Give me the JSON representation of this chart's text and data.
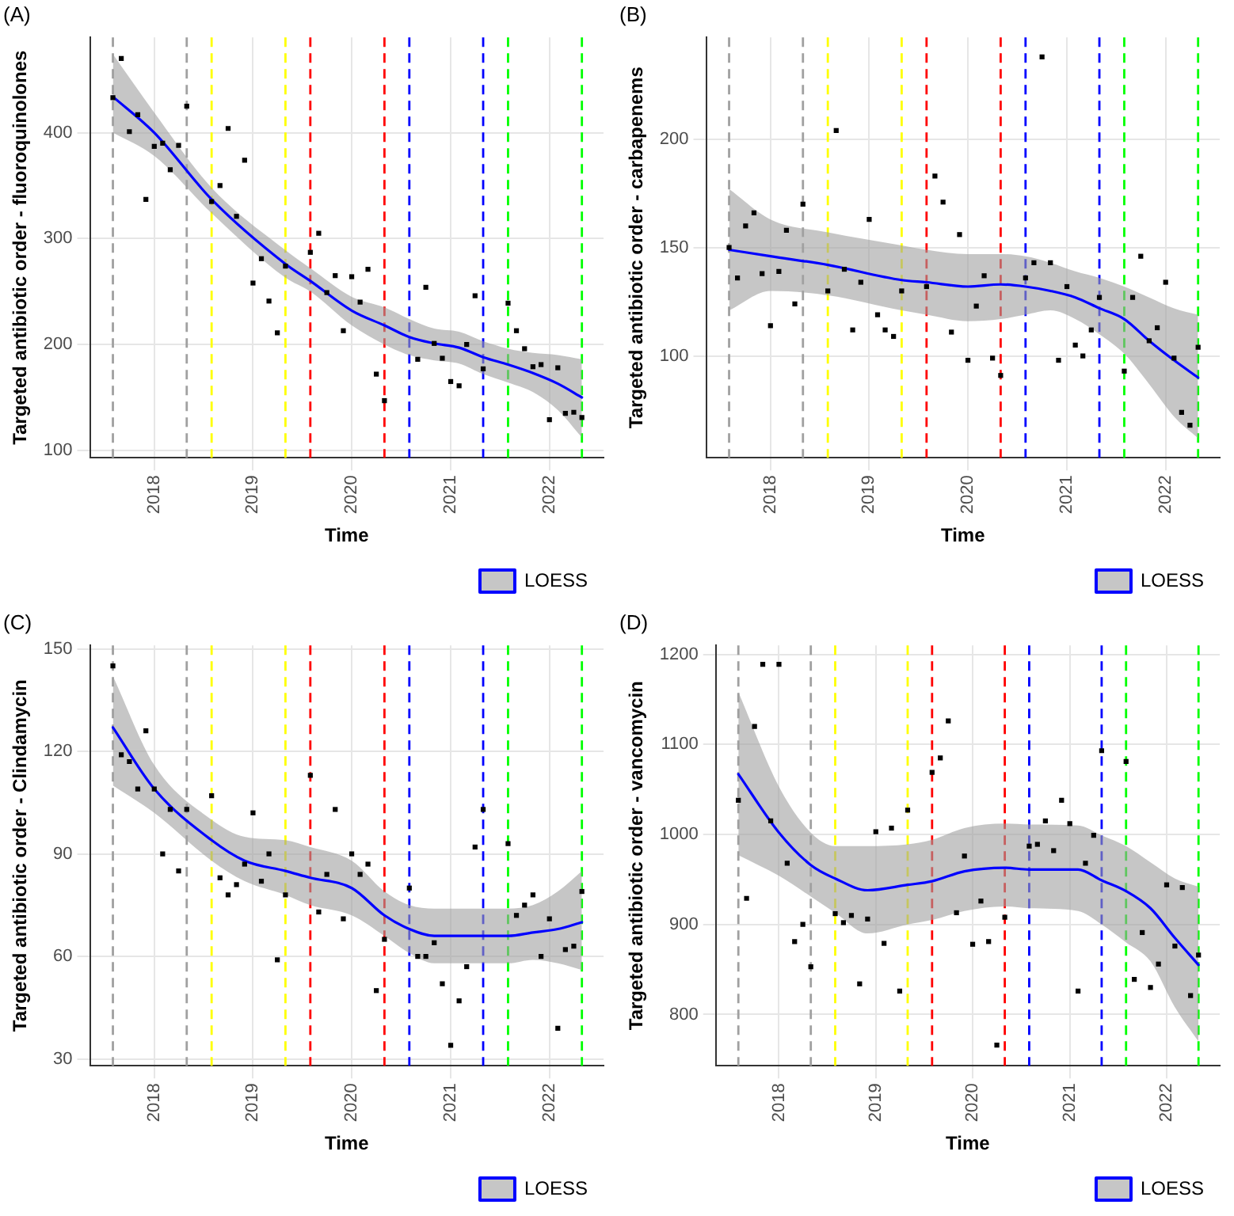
{
  "chart_data": [
    {
      "type": "scatter",
      "title": "(A)",
      "xlabel": "Time",
      "ylabel": "Targeted antibiotic order - fluoroquinolones",
      "xlim": [
        "2017-05-08",
        "2022-07-20"
      ],
      "xticks": [
        "2018",
        "2019",
        "2020",
        "2021",
        "2022"
      ],
      "ylim": [
        93,
        490
      ],
      "yticks": [
        100,
        200,
        300,
        400
      ],
      "grid": true,
      "legend": "bottom right",
      "x": [
        "2017-08",
        "2017-09",
        "2017-10",
        "2017-11",
        "2017-12",
        "2018-01",
        "2018-02",
        "2018-03",
        "2018-04",
        "2018-05",
        "2018-08",
        "2018-09",
        "2018-10",
        "2018-11",
        "2018-12",
        "2019-01",
        "2019-02",
        "2019-03",
        "2019-04",
        "2019-05",
        "2019-08",
        "2019-09",
        "2019-10",
        "2019-11",
        "2019-12",
        "2020-01",
        "2020-02",
        "2020-03",
        "2020-04",
        "2020-05",
        "2020-08",
        "2020-09",
        "2020-10",
        "2020-11",
        "2020-12",
        "2021-01",
        "2021-02",
        "2021-03",
        "2021-04",
        "2021-05",
        "2021-08",
        "2021-09",
        "2021-10",
        "2021-11",
        "2021-12",
        "2022-01",
        "2022-02",
        "2022-03",
        "2022-04",
        "2022-05"
      ],
      "series": [
        {
          "type": "scatter",
          "marker": "square",
          "color": "#000000",
          "values": [
            433,
            470,
            401,
            417,
            337,
            387,
            390,
            365,
            388,
            425,
            335,
            350,
            404,
            321,
            374,
            258,
            281,
            241,
            211,
            274,
            287,
            305,
            249,
            265,
            213,
            264,
            240,
            271,
            172,
            147,
            null,
            186,
            254,
            201,
            187,
            165,
            161,
            200,
            246,
            177,
            239,
            213,
            196,
            179,
            181,
            129,
            178,
            135,
            136,
            131
          ]
        },
        {
          "name": "LOESS",
          "type": "line",
          "color": "#0000ff",
          "x": [
            "2017-08",
            "2018-01",
            "2018-08",
            "2019-05",
            "2019-08",
            "2020-01",
            "2020-05",
            "2020-08",
            "2020-11",
            "2021-02",
            "2021-05",
            "2021-08",
            "2021-11",
            "2022-02",
            "2022-05"
          ],
          "values": [
            434,
            400,
            337,
            276,
            260,
            232,
            218,
            207,
            201,
            197,
            188,
            181,
            173,
            163,
            150
          ],
          "lower": [
            400,
            378,
            324,
            263,
            250,
            218,
            200,
            190,
            185,
            182,
            172,
            164,
            155,
            138,
            112
          ],
          "upper": [
            474,
            419,
            348,
            289,
            272,
            245,
            235,
            224,
            215,
            212,
            203,
            196,
            192,
            190,
            186
          ]
        }
      ],
      "ref_lines": [
        {
          "axis": "x",
          "value": "2017-08",
          "color": "#a0a0a0",
          "line_style": "dashed"
        },
        {
          "axis": "x",
          "value": "2018-05",
          "color": "#a0a0a0",
          "line_style": "dashed"
        },
        {
          "axis": "x",
          "value": "2018-08",
          "color": "#ffff00",
          "line_style": "dashed"
        },
        {
          "axis": "x",
          "value": "2019-05",
          "color": "#ffff00",
          "line_style": "dashed"
        },
        {
          "axis": "x",
          "value": "2019-08",
          "color": "#ff0000",
          "line_style": "dashed"
        },
        {
          "axis": "x",
          "value": "2020-05",
          "color": "#ff0000",
          "line_style": "dashed"
        },
        {
          "axis": "x",
          "value": "2020-08",
          "color": "#0000ff",
          "line_style": "dashed"
        },
        {
          "axis": "x",
          "value": "2021-05",
          "color": "#0000ff",
          "line_style": "dashed"
        },
        {
          "axis": "x",
          "value": "2021-08",
          "color": "#00ff00",
          "line_style": "dashed"
        },
        {
          "axis": "x",
          "value": "2022-05",
          "color": "#00ff00",
          "line_style": "dashed"
        }
      ]
    },
    {
      "type": "scatter",
      "title": "(B)",
      "xlabel": "Time",
      "ylabel": "Targeted antibiotic order - carbapenems",
      "xlim": [
        "2017-05-08",
        "2022-07-20"
      ],
      "xticks": [
        "2018",
        "2019",
        "2020",
        "2021",
        "2022"
      ],
      "ylim": [
        53,
        247
      ],
      "yticks": [
        100,
        150,
        200
      ],
      "grid": true,
      "legend": "bottom right",
      "x": [
        "2017-08",
        "2017-09",
        "2017-10",
        "2017-11",
        "2017-12",
        "2018-01",
        "2018-02",
        "2018-03",
        "2018-04",
        "2018-05",
        "2018-08",
        "2018-09",
        "2018-10",
        "2018-11",
        "2018-12",
        "2019-01",
        "2019-02",
        "2019-03",
        "2019-04",
        "2019-05",
        "2019-08",
        "2019-09",
        "2019-10",
        "2019-11",
        "2019-12",
        "2020-01",
        "2020-02",
        "2020-03",
        "2020-04",
        "2020-05",
        "2020-08",
        "2020-09",
        "2020-10",
        "2020-11",
        "2020-12",
        "2021-01",
        "2021-02",
        "2021-03",
        "2021-04",
        "2021-05",
        "2021-08",
        "2021-09",
        "2021-10",
        "2021-11",
        "2021-12",
        "2022-01",
        "2022-02",
        "2022-03",
        "2022-04",
        "2022-05"
      ],
      "series": [
        {
          "type": "scatter",
          "marker": "square",
          "color": "#000000",
          "values": [
            150,
            136,
            160,
            166,
            138,
            114,
            139,
            158,
            124,
            170,
            130,
            204,
            140,
            112,
            134,
            163,
            119,
            112,
            109,
            130,
            132,
            183,
            171,
            111,
            156,
            98,
            123,
            137,
            99,
            91,
            136,
            143,
            238,
            143,
            98,
            132,
            105,
            100,
            112,
            127,
            93,
            127,
            146,
            107,
            113,
            134,
            99,
            74,
            68,
            104
          ]
        },
        {
          "name": "LOESS",
          "type": "line",
          "color": "#0000ff",
          "x": [
            "2017-08",
            "2018-01",
            "2018-08",
            "2019-05",
            "2019-08",
            "2020-01",
            "2020-05",
            "2020-08",
            "2020-11",
            "2021-02",
            "2021-05",
            "2021-08",
            "2021-11",
            "2022-02",
            "2022-05"
          ],
          "values": [
            149,
            146,
            142,
            135,
            134,
            132,
            133,
            132,
            130,
            127,
            122,
            117,
            107,
            98,
            90
          ],
          "lower": [
            121,
            130,
            128,
            121,
            119,
            116,
            117,
            119,
            121,
            117,
            110,
            101,
            87,
            72,
            62
          ],
          "upper": [
            177,
            163,
            157,
            151,
            149,
            147,
            147,
            146,
            143,
            139,
            136,
            132,
            127,
            122,
            119
          ]
        }
      ],
      "ref_lines": [
        {
          "axis": "x",
          "value": "2017-08",
          "color": "#a0a0a0",
          "line_style": "dashed"
        },
        {
          "axis": "x",
          "value": "2018-05",
          "color": "#a0a0a0",
          "line_style": "dashed"
        },
        {
          "axis": "x",
          "value": "2018-08",
          "color": "#ffff00",
          "line_style": "dashed"
        },
        {
          "axis": "x",
          "value": "2019-05",
          "color": "#ffff00",
          "line_style": "dashed"
        },
        {
          "axis": "x",
          "value": "2019-08",
          "color": "#ff0000",
          "line_style": "dashed"
        },
        {
          "axis": "x",
          "value": "2020-05",
          "color": "#ff0000",
          "line_style": "dashed"
        },
        {
          "axis": "x",
          "value": "2020-08",
          "color": "#0000ff",
          "line_style": "dashed"
        },
        {
          "axis": "x",
          "value": "2021-05",
          "color": "#0000ff",
          "line_style": "dashed"
        },
        {
          "axis": "x",
          "value": "2021-08",
          "color": "#00ff00",
          "line_style": "dashed"
        },
        {
          "axis": "x",
          "value": "2022-05",
          "color": "#00ff00",
          "line_style": "dashed"
        }
      ]
    },
    {
      "type": "scatter",
      "title": "(C)",
      "xlabel": "Time",
      "ylabel": "Targeted antibiotic order - Clindamycin",
      "xlim": [
        "2017-05-08",
        "2022-07-20"
      ],
      "xticks": [
        "2018",
        "2019",
        "2020",
        "2021",
        "2022"
      ],
      "ylim": [
        28,
        151
      ],
      "yticks": [
        30,
        60,
        90,
        120,
        150
      ],
      "grid": true,
      "legend": "bottom right",
      "x": [
        "2017-08",
        "2017-09",
        "2017-10",
        "2017-11",
        "2017-12",
        "2018-01",
        "2018-02",
        "2018-03",
        "2018-04",
        "2018-05",
        "2018-08",
        "2018-09",
        "2018-10",
        "2018-11",
        "2018-12",
        "2019-01",
        "2019-02",
        "2019-03",
        "2019-04",
        "2019-05",
        "2019-08",
        "2019-09",
        "2019-10",
        "2019-11",
        "2019-12",
        "2020-01",
        "2020-02",
        "2020-03",
        "2020-04",
        "2020-05",
        "2020-08",
        "2020-09",
        "2020-10",
        "2020-11",
        "2020-12",
        "2021-01",
        "2021-02",
        "2021-03",
        "2021-04",
        "2021-05",
        "2021-08",
        "2021-09",
        "2021-10",
        "2021-11",
        "2021-12",
        "2022-01",
        "2022-02",
        "2022-03",
        "2022-04",
        "2022-05"
      ],
      "series": [
        {
          "type": "scatter",
          "marker": "square",
          "color": "#000000",
          "values": [
            145,
            119,
            117,
            109,
            126,
            109,
            90,
            103,
            85,
            103,
            107,
            83,
            78,
            81,
            87,
            102,
            82,
            90,
            59,
            78,
            113,
            73,
            84,
            103,
            71,
            90,
            84,
            87,
            50,
            65,
            80,
            60,
            60,
            64,
            52,
            34,
            47,
            57,
            92,
            103,
            93,
            72,
            75,
            78,
            60,
            71,
            39,
            62,
            63,
            79
          ]
        },
        {
          "name": "LOESS",
          "type": "line",
          "color": "#0000ff",
          "x": [
            "2017-08",
            "2018-01",
            "2018-08",
            "2018-12",
            "2019-05",
            "2019-08",
            "2020-01",
            "2020-05",
            "2020-08",
            "2020-11",
            "2021-05",
            "2021-08",
            "2021-11",
            "2022-02",
            "2022-05"
          ],
          "values": [
            127,
            109,
            94,
            88,
            85,
            83,
            80,
            72,
            68,
            66,
            66,
            66,
            67,
            68,
            70
          ],
          "lower": [
            110,
            102,
            88,
            82,
            78,
            75,
            72,
            66,
            61,
            58,
            58,
            58,
            59,
            58,
            56
          ],
          "upper": [
            142,
            116,
            100,
            95,
            94,
            92,
            88,
            79,
            75,
            74,
            74,
            74,
            75,
            79,
            85
          ]
        }
      ],
      "ref_lines": [
        {
          "axis": "x",
          "value": "2017-08",
          "color": "#a0a0a0",
          "line_style": "dashed"
        },
        {
          "axis": "x",
          "value": "2018-05",
          "color": "#a0a0a0",
          "line_style": "dashed"
        },
        {
          "axis": "x",
          "value": "2018-08",
          "color": "#ffff00",
          "line_style": "dashed"
        },
        {
          "axis": "x",
          "value": "2019-05",
          "color": "#ffff00",
          "line_style": "dashed"
        },
        {
          "axis": "x",
          "value": "2019-08",
          "color": "#ff0000",
          "line_style": "dashed"
        },
        {
          "axis": "x",
          "value": "2020-05",
          "color": "#ff0000",
          "line_style": "dashed"
        },
        {
          "axis": "x",
          "value": "2020-08",
          "color": "#0000ff",
          "line_style": "dashed"
        },
        {
          "axis": "x",
          "value": "2021-05",
          "color": "#0000ff",
          "line_style": "dashed"
        },
        {
          "axis": "x",
          "value": "2021-08",
          "color": "#00ff00",
          "line_style": "dashed"
        },
        {
          "axis": "x",
          "value": "2022-05",
          "color": "#00ff00",
          "line_style": "dashed"
        }
      ]
    },
    {
      "type": "scatter",
      "title": "(D)",
      "xlabel": "Time",
      "ylabel": "Targeted antibiotic order - vancomycin",
      "xlim": [
        "2017-05-08",
        "2022-07-20"
      ],
      "xticks": [
        "2018",
        "2019",
        "2020",
        "2021",
        "2022"
      ],
      "ylim": [
        743,
        1210
      ],
      "yticks": [
        800,
        900,
        1000,
        1100,
        1200
      ],
      "grid": true,
      "legend": "bottom right",
      "x": [
        "2017-08",
        "2017-09",
        "2017-10",
        "2017-11",
        "2017-12",
        "2018-01",
        "2018-02",
        "2018-03",
        "2018-04",
        "2018-05",
        "2018-08",
        "2018-09",
        "2018-10",
        "2018-11",
        "2018-12",
        "2019-01",
        "2019-02",
        "2019-03",
        "2019-04",
        "2019-05",
        "2019-08",
        "2019-09",
        "2019-10",
        "2019-11",
        "2019-12",
        "2020-01",
        "2020-02",
        "2020-03",
        "2020-04",
        "2020-05",
        "2020-08",
        "2020-09",
        "2020-10",
        "2020-11",
        "2020-12",
        "2021-01",
        "2021-02",
        "2021-03",
        "2021-04",
        "2021-05",
        "2021-08",
        "2021-09",
        "2021-10",
        "2021-11",
        "2021-12",
        "2022-01",
        "2022-02",
        "2022-03",
        "2022-04",
        "2022-05"
      ],
      "series": [
        {
          "type": "scatter",
          "marker": "square",
          "color": "#000000",
          "values": [
            1038,
            929,
            1120,
            1189,
            1015,
            1189,
            968,
            881,
            900,
            853,
            912,
            902,
            910,
            834,
            906,
            1003,
            879,
            1007,
            826,
            1027,
            1069,
            1085,
            1126,
            913,
            976,
            878,
            926,
            881,
            766,
            908,
            987,
            989,
            1015,
            982,
            1038,
            1012,
            826,
            968,
            999,
            1093,
            1081,
            839,
            891,
            830,
            856,
            944,
            876,
            941,
            821,
            866
          ]
        },
        {
          "name": "LOESS",
          "type": "line",
          "color": "#0000ff",
          "x": [
            "2017-08",
            "2018-01",
            "2018-05",
            "2018-08",
            "2018-12",
            "2019-05",
            "2019-08",
            "2019-12",
            "2020-05",
            "2020-08",
            "2021-02",
            "2021-05",
            "2021-08",
            "2021-11",
            "2022-02",
            "2022-05"
          ],
          "values": [
            1067,
            1002,
            966,
            951,
            938,
            944,
            948,
            959,
            963,
            961,
            961,
            949,
            937,
            918,
            885,
            855
          ],
          "lower": [
            977,
            954,
            931,
            913,
            890,
            900,
            905,
            915,
            920,
            918,
            915,
            900,
            880,
            859,
            808,
            770
          ],
          "upper": [
            1158,
            1053,
            1002,
            987,
            987,
            989,
            994,
            1007,
            1012,
            1011,
            1010,
            999,
            987,
            969,
            951,
            942
          ]
        }
      ],
      "ref_lines": [
        {
          "axis": "x",
          "value": "2017-08",
          "color": "#a0a0a0",
          "line_style": "dashed"
        },
        {
          "axis": "x",
          "value": "2018-05",
          "color": "#a0a0a0",
          "line_style": "dashed"
        },
        {
          "axis": "x",
          "value": "2018-08",
          "color": "#ffff00",
          "line_style": "dashed"
        },
        {
          "axis": "x",
          "value": "2019-05",
          "color": "#ffff00",
          "line_style": "dashed"
        },
        {
          "axis": "x",
          "value": "2019-08",
          "color": "#ff0000",
          "line_style": "dashed"
        },
        {
          "axis": "x",
          "value": "2020-05",
          "color": "#ff0000",
          "line_style": "dashed"
        },
        {
          "axis": "x",
          "value": "2020-08",
          "color": "#0000ff",
          "line_style": "dashed"
        },
        {
          "axis": "x",
          "value": "2021-05",
          "color": "#0000ff",
          "line_style": "dashed"
        },
        {
          "axis": "x",
          "value": "2021-08",
          "color": "#00ff00",
          "line_style": "dashed"
        },
        {
          "axis": "x",
          "value": "2022-05",
          "color": "#00ff00",
          "line_style": "dashed"
        }
      ]
    }
  ]
}
